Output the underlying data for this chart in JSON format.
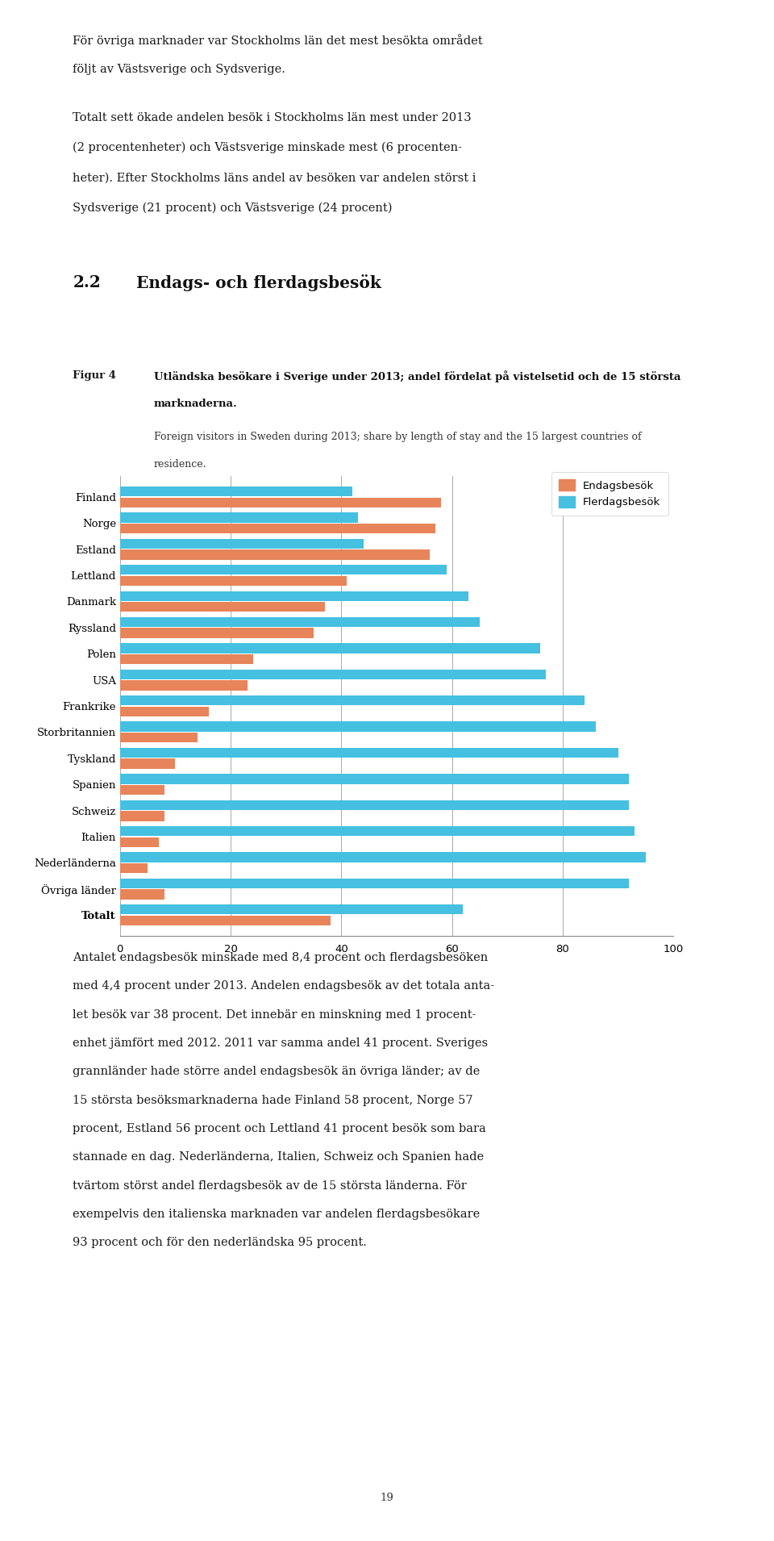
{
  "categories": [
    "Finland",
    "Norge",
    "Estland",
    "Lettland",
    "Danmark",
    "Ryssland",
    "Polen",
    "USA",
    "Frankrike",
    "Storbritannien",
    "Tyskland",
    "Spanien",
    "Schweiz",
    "Italien",
    "Nederländerna",
    "Övriga länder",
    "Totalt"
  ],
  "endagsbesok": [
    58,
    57,
    56,
    41,
    37,
    35,
    24,
    23,
    16,
    14,
    10,
    8,
    8,
    7,
    5,
    8,
    38
  ],
  "flerdagsbesok": [
    42,
    43,
    44,
    59,
    63,
    65,
    76,
    77,
    84,
    86,
    90,
    92,
    92,
    93,
    95,
    92,
    62
  ],
  "endags_color": "#E8845A",
  "flerdag_color": "#45C0E0",
  "background_color": "#FFFFFF",
  "xlim": [
    0,
    100
  ],
  "xticks": [
    0,
    20,
    40,
    60,
    80,
    100
  ],
  "bar_height": 0.38,
  "legend_labels": [
    "Endagsbesök",
    "Flerdagsbesök"
  ],
  "header_lines": [
    "För övriga marknader var Stockholms län det mest besökta området följt av Västsverige och Sydsverige.",
    "Totalt sett ökade andelen besök i Stockholms län mest under 2013 (2 procentenheter) och Västsverige minskade mest (6 procentenheter). Efter Stockholms läns andel av besöken var andelen störst i Sydsverige (21 procent) och Västsverige (24 procent)"
  ],
  "section_num": "2.2",
  "section_title": "Endags- och flerdagsbesök",
  "fig4_label": "Figur 4",
  "fig4_title_sv_line1": "Utländska besökare i Sverige under 2013; andel fördelat på vistelsetid och de 15 största",
  "fig4_title_sv_line2": "marknaderna.",
  "fig4_title_en_line1": "Foreign visitors in Sweden during 2013; share by length of stay and the 15 largest countries of",
  "fig4_title_en_line2": "residence.",
  "footer_lines": [
    "Antalet endagsbesök minskade med 8,4 procent och flerdagsbesöken",
    "med 4,4 procent under 2013. Andelen endagsbesök av det totala anta-",
    "let besök var 38 procent. Det innebär en minskning med 1 procent-",
    "enhet jämfört med 2012. 2011 var samma andel 41 procent. Sveriges",
    "grannländer hade större andel endagsbesök än övriga länder; av de",
    "15 största besöksmarknaderna hade Finland 58 procent, Norge 57",
    "procent, Estland 56 procent och Lettland 41 procent besök som bara",
    "stannade en dag. Nederländerna, Italien, Schweiz och Spanien hade",
    "tvärtom störst andel flerdagsbesök av de 15 största länderna. För",
    "exempelvis den italienska marknaden var andelen flerdagsbesökare",
    "93 procent och för den nederländska 95 procent."
  ],
  "page_number": "19"
}
